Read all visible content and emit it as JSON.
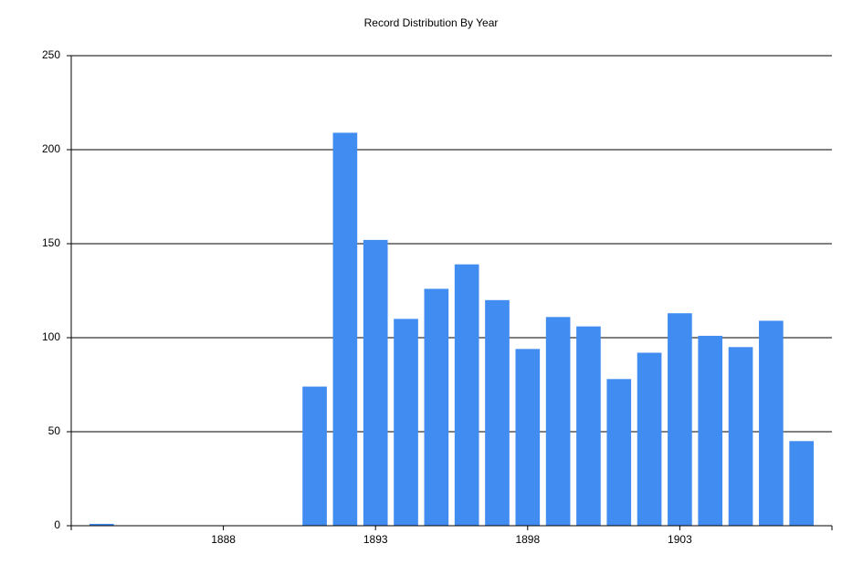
{
  "chart_data": {
    "type": "bar",
    "title": "Record Distribution By Year",
    "x": [
      1884,
      1891,
      1892,
      1893,
      1894,
      1895,
      1896,
      1897,
      1898,
      1899,
      1900,
      1901,
      1902,
      1903,
      1904,
      1905,
      1906,
      1907
    ],
    "values": [
      1,
      74,
      209,
      152,
      110,
      126,
      139,
      120,
      94,
      111,
      106,
      78,
      92,
      113,
      101,
      95,
      109,
      45
    ],
    "color": "#418cf0",
    "xlim": [
      1883,
      1908
    ],
    "xticks": [
      1888,
      1893,
      1898,
      1903
    ],
    "ylim": [
      0,
      250
    ],
    "yticks": [
      0,
      50,
      100,
      150,
      200,
      250
    ],
    "grid": true
  }
}
